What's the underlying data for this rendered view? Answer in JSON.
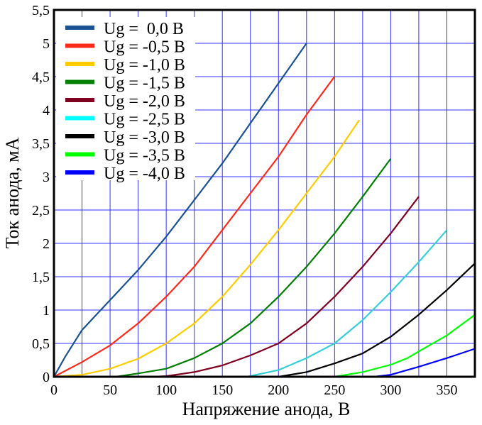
{
  "chart_data": {
    "type": "line",
    "title": "",
    "xlabel": "Напряжение анода, В",
    "ylabel": "Ток анода, мА",
    "xlim": [
      0,
      375
    ],
    "ylim": [
      0,
      5.5
    ],
    "x_ticks": [
      0,
      50,
      100,
      150,
      200,
      250,
      300,
      350
    ],
    "x_tick_labels": [
      "0",
      "50",
      "100",
      "150",
      "200",
      "250",
      "300",
      "350"
    ],
    "y_ticks": [
      0,
      0.5,
      1,
      1.5,
      2,
      2.5,
      3,
      3.5,
      4,
      4.5,
      5,
      5.5
    ],
    "y_tick_labels": [
      "0",
      "0,5",
      "1",
      "1,5",
      "2",
      "2,5",
      "3",
      "3,5",
      "4",
      "4,5",
      "5",
      "5,5"
    ],
    "grid": {
      "on": true,
      "x_step": 25,
      "y_step": 0.5,
      "color": "#3333ff"
    },
    "legend_placement": "top-left",
    "series": [
      {
        "name": "Ug =  0,0 В",
        "color": "#1a5294",
        "points": [
          [
            0,
            0
          ],
          [
            10,
            0.3
          ],
          [
            25,
            0.7
          ],
          [
            50,
            1.15
          ],
          [
            75,
            1.6
          ],
          [
            100,
            2.1
          ],
          [
            125,
            2.65
          ],
          [
            150,
            3.2
          ],
          [
            175,
            3.8
          ],
          [
            200,
            4.4
          ],
          [
            225,
            5.0
          ]
        ]
      },
      {
        "name": "Ug = -0,5 В",
        "color": "#ff2a1a",
        "points": [
          [
            0,
            0
          ],
          [
            25,
            0.22
          ],
          [
            50,
            0.47
          ],
          [
            75,
            0.8
          ],
          [
            100,
            1.2
          ],
          [
            125,
            1.65
          ],
          [
            150,
            2.2
          ],
          [
            175,
            2.75
          ],
          [
            200,
            3.3
          ],
          [
            225,
            3.93
          ],
          [
            250,
            4.5
          ]
        ]
      },
      {
        "name": "Ug = -1,0 В",
        "color": "#ffcc00",
        "points": [
          [
            0,
            0
          ],
          [
            25,
            0.03
          ],
          [
            50,
            0.12
          ],
          [
            75,
            0.27
          ],
          [
            100,
            0.5
          ],
          [
            125,
            0.8
          ],
          [
            150,
            1.2
          ],
          [
            175,
            1.68
          ],
          [
            200,
            2.2
          ],
          [
            225,
            2.75
          ],
          [
            250,
            3.3
          ],
          [
            272,
            3.85
          ]
        ]
      },
      {
        "name": "Ug = -1,5 В",
        "color": "#008000",
        "points": [
          [
            55,
            0
          ],
          [
            75,
            0.05
          ],
          [
            100,
            0.12
          ],
          [
            125,
            0.28
          ],
          [
            150,
            0.5
          ],
          [
            175,
            0.8
          ],
          [
            200,
            1.2
          ],
          [
            225,
            1.65
          ],
          [
            250,
            2.15
          ],
          [
            275,
            2.7
          ],
          [
            300,
            3.27
          ]
        ]
      },
      {
        "name": "Ug = -2,0 В",
        "color": "#800020",
        "points": [
          [
            88,
            0
          ],
          [
            100,
            0.01
          ],
          [
            125,
            0.07
          ],
          [
            150,
            0.17
          ],
          [
            175,
            0.32
          ],
          [
            200,
            0.5
          ],
          [
            225,
            0.8
          ],
          [
            250,
            1.2
          ],
          [
            275,
            1.65
          ],
          [
            300,
            2.15
          ],
          [
            325,
            2.7
          ]
        ]
      },
      {
        "name": "Ug = -2,5 В",
        "color": "#00ffff",
        "line_color": "#33d0d6",
        "points": [
          [
            172,
            0
          ],
          [
            200,
            0.1
          ],
          [
            225,
            0.28
          ],
          [
            250,
            0.5
          ],
          [
            275,
            0.85
          ],
          [
            300,
            1.27
          ],
          [
            325,
            1.72
          ],
          [
            350,
            2.2
          ]
        ]
      },
      {
        "name": "Ug = -3,0 В",
        "color": "#000000",
        "points": [
          [
            200,
            0
          ],
          [
            225,
            0.07
          ],
          [
            250,
            0.2
          ],
          [
            275,
            0.35
          ],
          [
            300,
            0.6
          ],
          [
            325,
            0.93
          ],
          [
            350,
            1.3
          ],
          [
            375,
            1.7
          ]
        ]
      },
      {
        "name": "Ug = -3,5 В",
        "color": "#00ff00",
        "points": [
          [
            250,
            0
          ],
          [
            275,
            0.07
          ],
          [
            300,
            0.18
          ],
          [
            315,
            0.28
          ],
          [
            325,
            0.38
          ],
          [
            350,
            0.62
          ],
          [
            375,
            0.93
          ]
        ]
      },
      {
        "name": "Ug = -4,0 В",
        "color": "#0000ff",
        "points": [
          [
            285,
            0
          ],
          [
            300,
            0.03
          ],
          [
            325,
            0.15
          ],
          [
            350,
            0.28
          ],
          [
            375,
            0.42
          ]
        ]
      }
    ]
  }
}
